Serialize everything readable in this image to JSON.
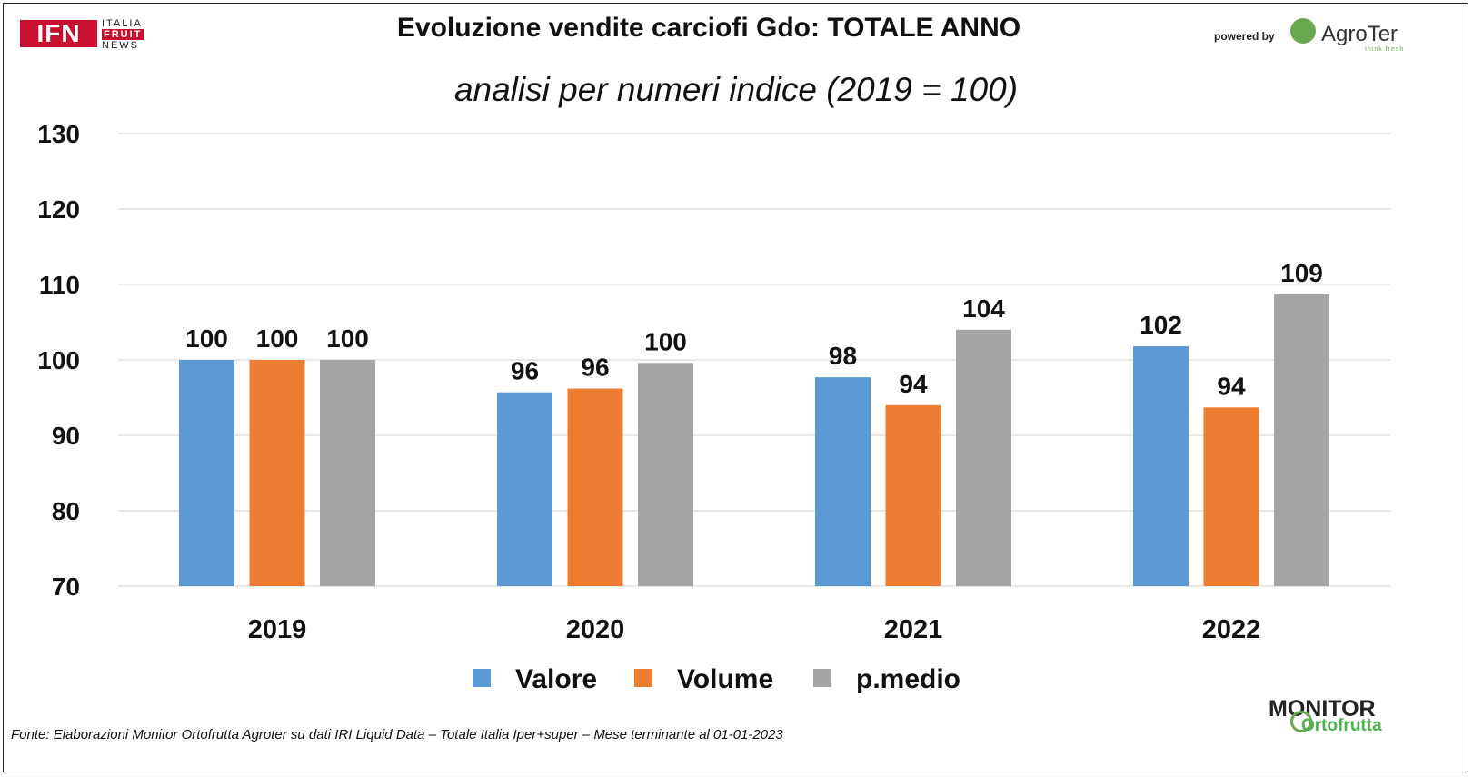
{
  "header": {
    "title": "Evoluzione vendite carciofi Gdo: TOTALE ANNO",
    "subtitle": "analisi per numeri indice (2019 = 100)"
  },
  "logos": {
    "ifn_letters": "IFN",
    "ifn_line1": "ITALIA",
    "ifn_line2": "FRUIT",
    "ifn_line3": "NEWS",
    "powered_by": "powered by",
    "agroter_name": "AgroTer",
    "agroter_tagline": "think fresh",
    "monitor_line1": "MONITOR",
    "monitor_line2": "Ortofrutta"
  },
  "footer": {
    "source": "Fonte: Elaborazioni Monitor Ortofrutta Agroter su dati IRI Liquid Data – Totale Italia Iper+super – Mese terminante al 01-01-2023"
  },
  "colors": {
    "valore": "#5b9bd5",
    "volume": "#ed7d31",
    "pmedio": "#a5a5a5",
    "grid": "#d9d9d9"
  },
  "chart_data": {
    "type": "bar",
    "categories": [
      "2019",
      "2020",
      "2021",
      "2022"
    ],
    "series": [
      {
        "name": "Valore",
        "values": [
          100,
          95.7,
          97.7,
          101.8
        ],
        "labels": [
          "100",
          "96",
          "98",
          "102"
        ]
      },
      {
        "name": "Volume",
        "values": [
          100,
          96.2,
          94,
          93.7
        ],
        "labels": [
          "100",
          "96",
          "94",
          "94"
        ]
      },
      {
        "name": "p.medio",
        "values": [
          100,
          99.6,
          104,
          108.7
        ],
        "labels": [
          "100",
          "100",
          "104",
          "109"
        ]
      }
    ],
    "ylim": [
      70,
      130
    ],
    "yticks": [
      "70",
      "80",
      "90",
      "100",
      "110",
      "120",
      "130"
    ],
    "grid": true,
    "legend": "bottom"
  }
}
